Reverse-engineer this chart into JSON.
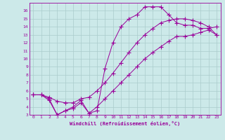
{
  "background_color": "#cce9e9",
  "grid_color": "#aacccc",
  "line_color": "#990099",
  "xlabel": "Windchill (Refroidissement éolien,°C)",
  "xlim": [
    -0.5,
    23.5
  ],
  "ylim": [
    3,
    17
  ],
  "xticks": [
    0,
    1,
    2,
    3,
    4,
    5,
    6,
    7,
    8,
    9,
    10,
    11,
    12,
    13,
    14,
    15,
    16,
    17,
    18,
    19,
    20,
    21,
    22,
    23
  ],
  "yticks": [
    3,
    4,
    5,
    6,
    7,
    8,
    9,
    10,
    11,
    12,
    13,
    14,
    15,
    16
  ],
  "line1_x": [
    0,
    1,
    2,
    3,
    4,
    5,
    6,
    7,
    8,
    9,
    10,
    11,
    12,
    13,
    14,
    15,
    16,
    17,
    18,
    19,
    20,
    21,
    22,
    23
  ],
  "line1_y": [
    5.5,
    5.5,
    5.0,
    3.0,
    3.5,
    3.8,
    4.5,
    3.2,
    4.0,
    5.0,
    6.0,
    7.0,
    8.0,
    9.0,
    10.0,
    10.8,
    11.5,
    12.2,
    12.8,
    12.8,
    13.0,
    13.3,
    13.6,
    13.0
  ],
  "line2_x": [
    0,
    1,
    2,
    3,
    4,
    5,
    6,
    7,
    8,
    9,
    10,
    11,
    12,
    13,
    14,
    15,
    16,
    17,
    18,
    19,
    20,
    21,
    22,
    23
  ],
  "line2_y": [
    5.5,
    5.5,
    5.2,
    4.7,
    4.5,
    4.5,
    5.0,
    5.2,
    6.0,
    7.0,
    8.2,
    9.5,
    10.8,
    12.0,
    13.0,
    13.8,
    14.5,
    14.8,
    15.0,
    15.0,
    14.8,
    14.5,
    14.0,
    13.0
  ],
  "line3_x": [
    0,
    1,
    2,
    3,
    4,
    5,
    6,
    7,
    8,
    9,
    10,
    11,
    12,
    13,
    14,
    15,
    16,
    17,
    18,
    19,
    20,
    21,
    22,
    23
  ],
  "line3_y": [
    5.5,
    5.5,
    4.8,
    3.0,
    3.5,
    4.0,
    4.8,
    3.2,
    3.5,
    8.8,
    12.0,
    14.0,
    15.0,
    15.5,
    16.5,
    16.5,
    16.5,
    15.5,
    14.5,
    14.2,
    14.2,
    13.8,
    13.8,
    14.0
  ]
}
